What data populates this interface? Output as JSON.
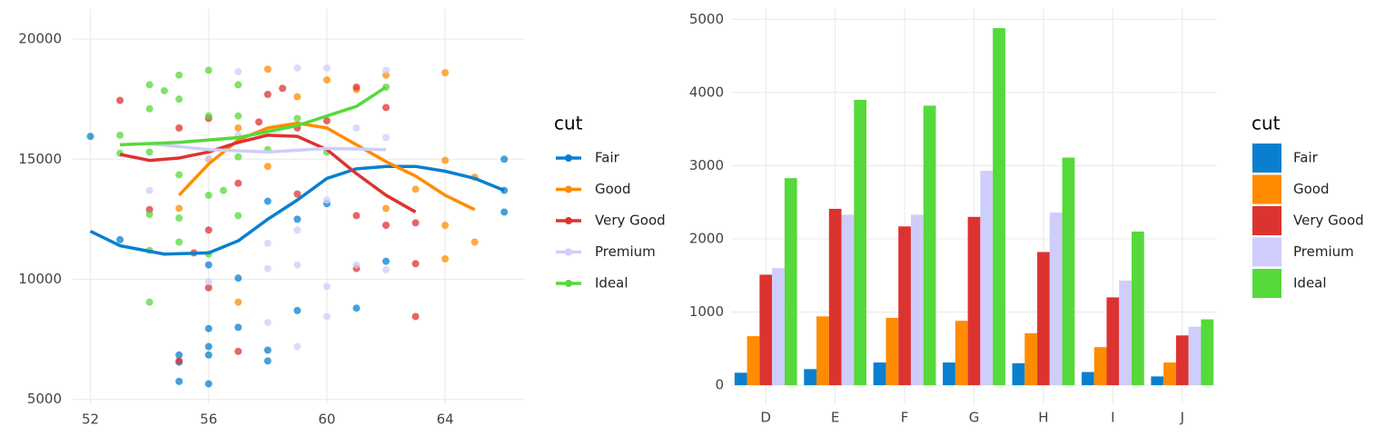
{
  "chart_data": [
    {
      "type": "scatter",
      "legend_title": "cut",
      "grid": true,
      "xlim": [
        51.4,
        66.7
      ],
      "xticks": [
        52,
        56,
        60,
        64
      ],
      "ylim": [
        4800,
        21250
      ],
      "yticks": [
        5000,
        10000,
        15000,
        20000
      ],
      "series": [
        {
          "name": "Fair",
          "color": "#0a7fcf",
          "x": [
            52,
            53,
            55,
            55,
            55,
            56,
            56,
            56,
            56,
            56,
            57,
            57,
            58,
            58,
            58,
            59,
            59,
            60,
            61,
            62,
            66,
            66,
            66
          ],
          "values": [
            15950,
            11650,
            6850,
            6550,
            5750,
            7950,
            7200,
            6850,
            5650,
            10600,
            8000,
            10050,
            7050,
            6600,
            13250,
            8700,
            12500,
            13150,
            8800,
            10750,
            15000,
            13700,
            12800
          ],
          "smooth_x": [
            52,
            53,
            54.5,
            56,
            57,
            58,
            59,
            60,
            61,
            62,
            63,
            64,
            65,
            66
          ],
          "smooth_values": [
            12000,
            11400,
            11050,
            11100,
            11600,
            12500,
            13300,
            14200,
            14600,
            14700,
            14700,
            14500,
            14200,
            13700
          ]
        },
        {
          "name": "Good",
          "color": "#ff8c00",
          "x": [
            55,
            56,
            57,
            57,
            58,
            58,
            59,
            60,
            61,
            62,
            62,
            63,
            64,
            64,
            64,
            64,
            65,
            65
          ],
          "values": [
            12950,
            15000,
            9050,
            16300,
            18750,
            14700,
            17600,
            18300,
            17900,
            18500,
            12950,
            13750,
            18600,
            14950,
            12250,
            10850,
            11550,
            14250
          ],
          "smooth_x": [
            55,
            56,
            57,
            58,
            59,
            60,
            61,
            62,
            63,
            64,
            65
          ],
          "smooth_values": [
            13500,
            14800,
            15800,
            16300,
            16500,
            16300,
            15600,
            14900,
            14300,
            13500,
            12900
          ]
        },
        {
          "name": "Very Good",
          "color": "#dc3330",
          "x": [
            53,
            54,
            55,
            55,
            55.5,
            56,
            56,
            56,
            57,
            57,
            57.7,
            58,
            58.5,
            59,
            59,
            60,
            61,
            61,
            61,
            62,
            62,
            63,
            63,
            63
          ],
          "values": [
            17450,
            12900,
            6600,
            16300,
            11100,
            9650,
            12050,
            16700,
            7000,
            14000,
            16550,
            17700,
            17950,
            16300,
            13550,
            16600,
            18000,
            10450,
            12650,
            17150,
            12250,
            12350,
            10650,
            8450
          ],
          "smooth_x": [
            53,
            54,
            55,
            56,
            57,
            58,
            59,
            60,
            61,
            62,
            63
          ],
          "smooth_values": [
            15200,
            14950,
            15050,
            15300,
            15700,
            16000,
            15950,
            15400,
            14400,
            13500,
            12800
          ]
        },
        {
          "name": "Premium",
          "color": "#cfcdfb",
          "x": [
            54,
            56,
            56,
            57,
            57,
            58,
            58,
            58,
            59,
            59,
            59,
            59,
            60,
            60,
            60,
            60,
            61,
            61,
            62,
            62,
            62
          ],
          "values": [
            13700,
            15000,
            9900,
            18650,
            16000,
            8200,
            10450,
            11500,
            18800,
            7200,
            10600,
            12050,
            18800,
            9700,
            8450,
            13300,
            16300,
            10600,
            18700,
            10400,
            15900
          ],
          "smooth_x": [
            54,
            56,
            58,
            60,
            62
          ],
          "smooth_values": [
            15650,
            15400,
            15300,
            15450,
            15400
          ]
        },
        {
          "name": "Ideal",
          "color": "#56d93a",
          "x": [
            53,
            53,
            54,
            54,
            54,
            54,
            54,
            54,
            54.5,
            55,
            55,
            55,
            55,
            55,
            56,
            56,
            56,
            56,
            56.5,
            57,
            57,
            57,
            57,
            58,
            59,
            60,
            62
          ],
          "values": [
            16000,
            15250,
            18100,
            17100,
            15300,
            12700,
            11200,
            9050,
            17850,
            18500,
            17500,
            14350,
            11550,
            12550,
            18700,
            16800,
            13500,
            11050,
            13700,
            18100,
            16800,
            15100,
            12650,
            15400,
            16700,
            15300,
            18000
          ],
          "smooth_x": [
            53,
            55,
            57,
            59,
            61,
            62
          ],
          "smooth_values": [
            15600,
            15700,
            15900,
            16400,
            17200,
            18000
          ]
        }
      ]
    },
    {
      "type": "bar",
      "legend_title": "cut",
      "grid": true,
      "categories": [
        "D",
        "E",
        "F",
        "G",
        "H",
        "I",
        "J"
      ],
      "ylim": [
        -260,
        5140
      ],
      "yticks": [
        0,
        1000,
        2000,
        3000,
        4000,
        5000
      ],
      "series": [
        {
          "name": "Fair",
          "color": "#0a7fcf",
          "values": [
            170,
            220,
            310,
            310,
            300,
            180,
            120
          ]
        },
        {
          "name": "Good",
          "color": "#ff8c00",
          "values": [
            670,
            940,
            920,
            880,
            710,
            520,
            310
          ]
        },
        {
          "name": "Very Good",
          "color": "#dc3330",
          "values": [
            1510,
            2410,
            2170,
            2300,
            1820,
            1200,
            680
          ]
        },
        {
          "name": "Premium",
          "color": "#cfcdfb",
          "values": [
            1600,
            2330,
            2330,
            2930,
            2360,
            1430,
            800
          ]
        },
        {
          "name": "Ideal",
          "color": "#56d93a",
          "values": [
            2830,
            3900,
            3820,
            4880,
            3110,
            2100,
            900
          ]
        }
      ]
    }
  ]
}
